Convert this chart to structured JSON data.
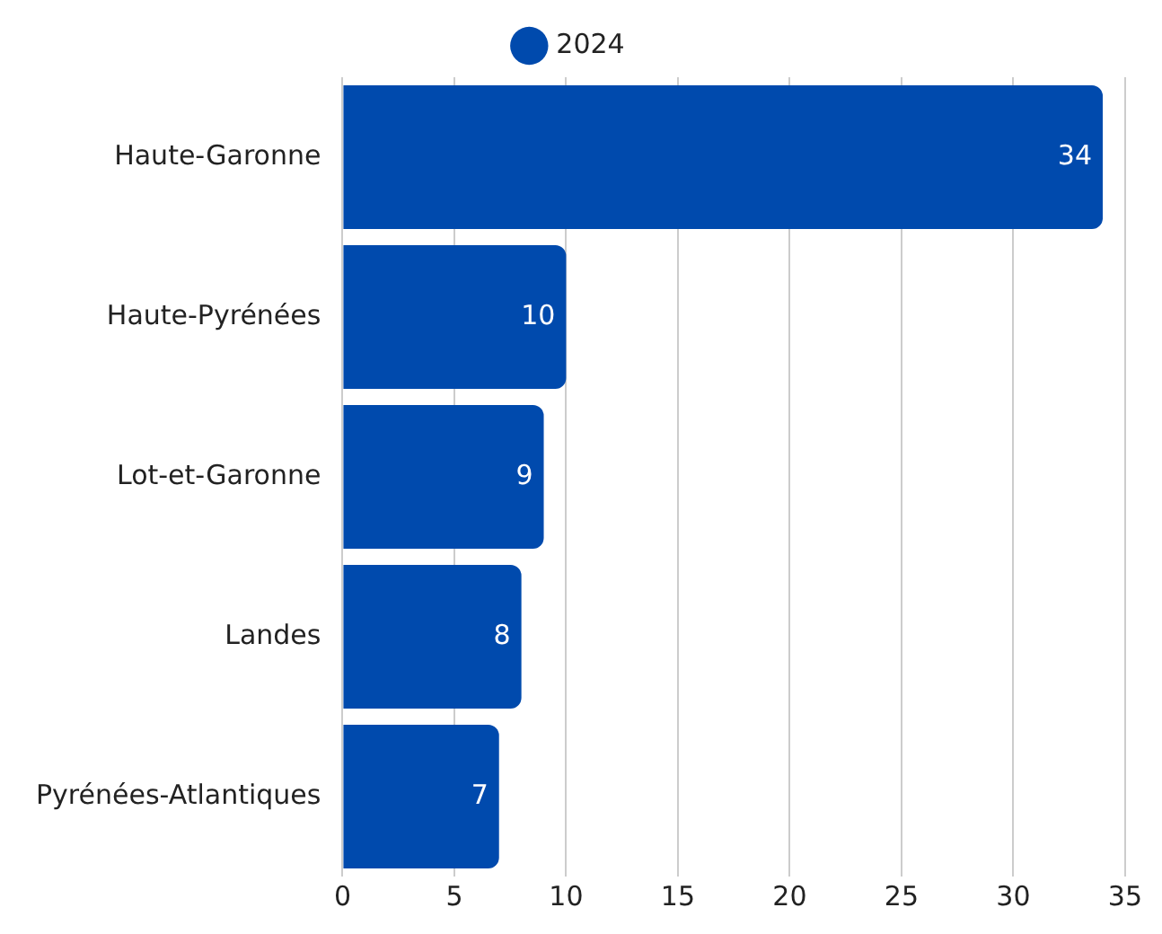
{
  "chart_data": {
    "type": "bar",
    "orientation": "horizontal",
    "categories": [
      "Haute-Garonne",
      "Haute-Pyrénées",
      "Lot-et-Garonne",
      "Landes",
      "Pyrénées-Atlantiques"
    ],
    "series": [
      {
        "name": "2024",
        "color": "#004aad",
        "values": [
          34,
          10,
          9,
          8,
          7
        ]
      }
    ],
    "xlim": [
      0,
      35
    ],
    "xticks": [
      0,
      5,
      10,
      15,
      20,
      25,
      30,
      35
    ],
    "grid": "x",
    "legend": "top",
    "data_labels": true
  }
}
